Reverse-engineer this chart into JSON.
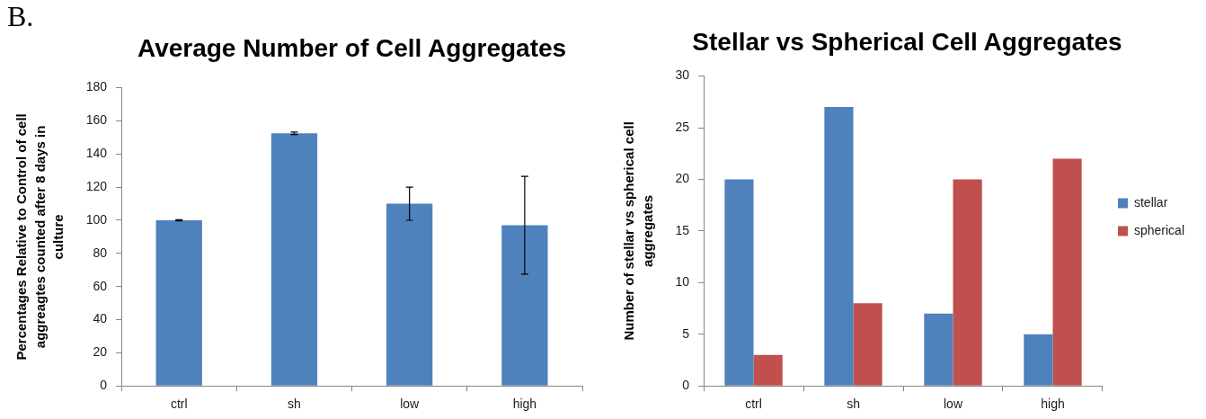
{
  "chart_data": [
    {
      "type": "bar",
      "title": "Average Number of Cell Aggregates",
      "ylabel": "Percentages Relative to Control of cell aggreagtes counted after 8 days in culture",
      "categories": [
        "ctrl",
        "sh",
        "low",
        "high"
      ],
      "values": [
        100,
        152.5,
        110,
        97
      ],
      "errors": [
        0.3,
        0.7,
        10,
        29.5
      ],
      "color": "#4f81bd",
      "ylim": [
        0,
        180
      ],
      "yticks": [
        0,
        20,
        40,
        60,
        80,
        100,
        120,
        140,
        160,
        180
      ],
      "grid": false,
      "legend": false,
      "annotations": [
        "B."
      ]
    },
    {
      "type": "bar",
      "title": "Stellar vs Spherical Cell Aggregates",
      "ylabel": "Number of stellar vs spherical cell aggregates",
      "categories": [
        "ctrl",
        "sh",
        "low",
        "high"
      ],
      "series": [
        {
          "name": "stellar",
          "color": "#4f81bd",
          "values": [
            20,
            27,
            7,
            5
          ]
        },
        {
          "name": "spherical",
          "color": "#c0504d",
          "values": [
            3,
            8,
            20,
            22
          ]
        }
      ],
      "ylim": [
        0,
        30
      ],
      "yticks": [
        0,
        5,
        10,
        15,
        20,
        25,
        30
      ],
      "grid": false,
      "legend": "right"
    }
  ]
}
